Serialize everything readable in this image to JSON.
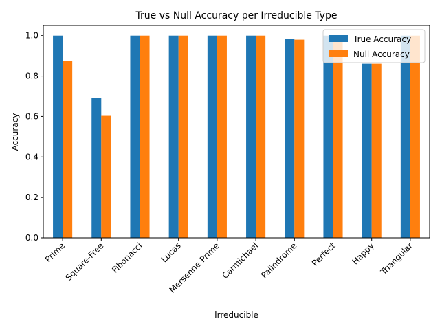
{
  "chart_data": {
    "type": "bar",
    "title": "True vs Null Accuracy per Irreducible Type",
    "x_label": "Irreducible",
    "y_label": "Accuracy",
    "categories": [
      "Prime",
      "Square-Free",
      "Fibonacci",
      "Lucas",
      "Mersenne Prime",
      "Carmichael",
      "Palindrome",
      "Perfect",
      "Happy",
      "Triangular"
    ],
    "series": [
      {
        "name": "True Accuracy",
        "color": "#1f77b4",
        "values": [
          1.0,
          0.692,
          1.0,
          1.0,
          1.0,
          1.0,
          0.983,
          1.0,
          0.861,
          1.0
        ]
      },
      {
        "name": "Null Accuracy",
        "color": "#ff7f0e",
        "values": [
          0.875,
          0.603,
          1.0,
          1.0,
          1.0,
          1.0,
          0.98,
          1.0,
          0.861,
          1.0
        ]
      }
    ],
    "ylim": [
      0,
      1.05
    ],
    "yticks": [
      {
        "value": 0,
        "label": "0.0"
      },
      {
        "value": 0.2,
        "label": "0.2"
      },
      {
        "value": 0.4,
        "label": "0.4"
      },
      {
        "value": 0.6,
        "label": "0.6"
      },
      {
        "value": 0.8,
        "label": "0.8"
      },
      {
        "value": 1,
        "label": "1.0"
      }
    ],
    "legend": "upper right"
  }
}
